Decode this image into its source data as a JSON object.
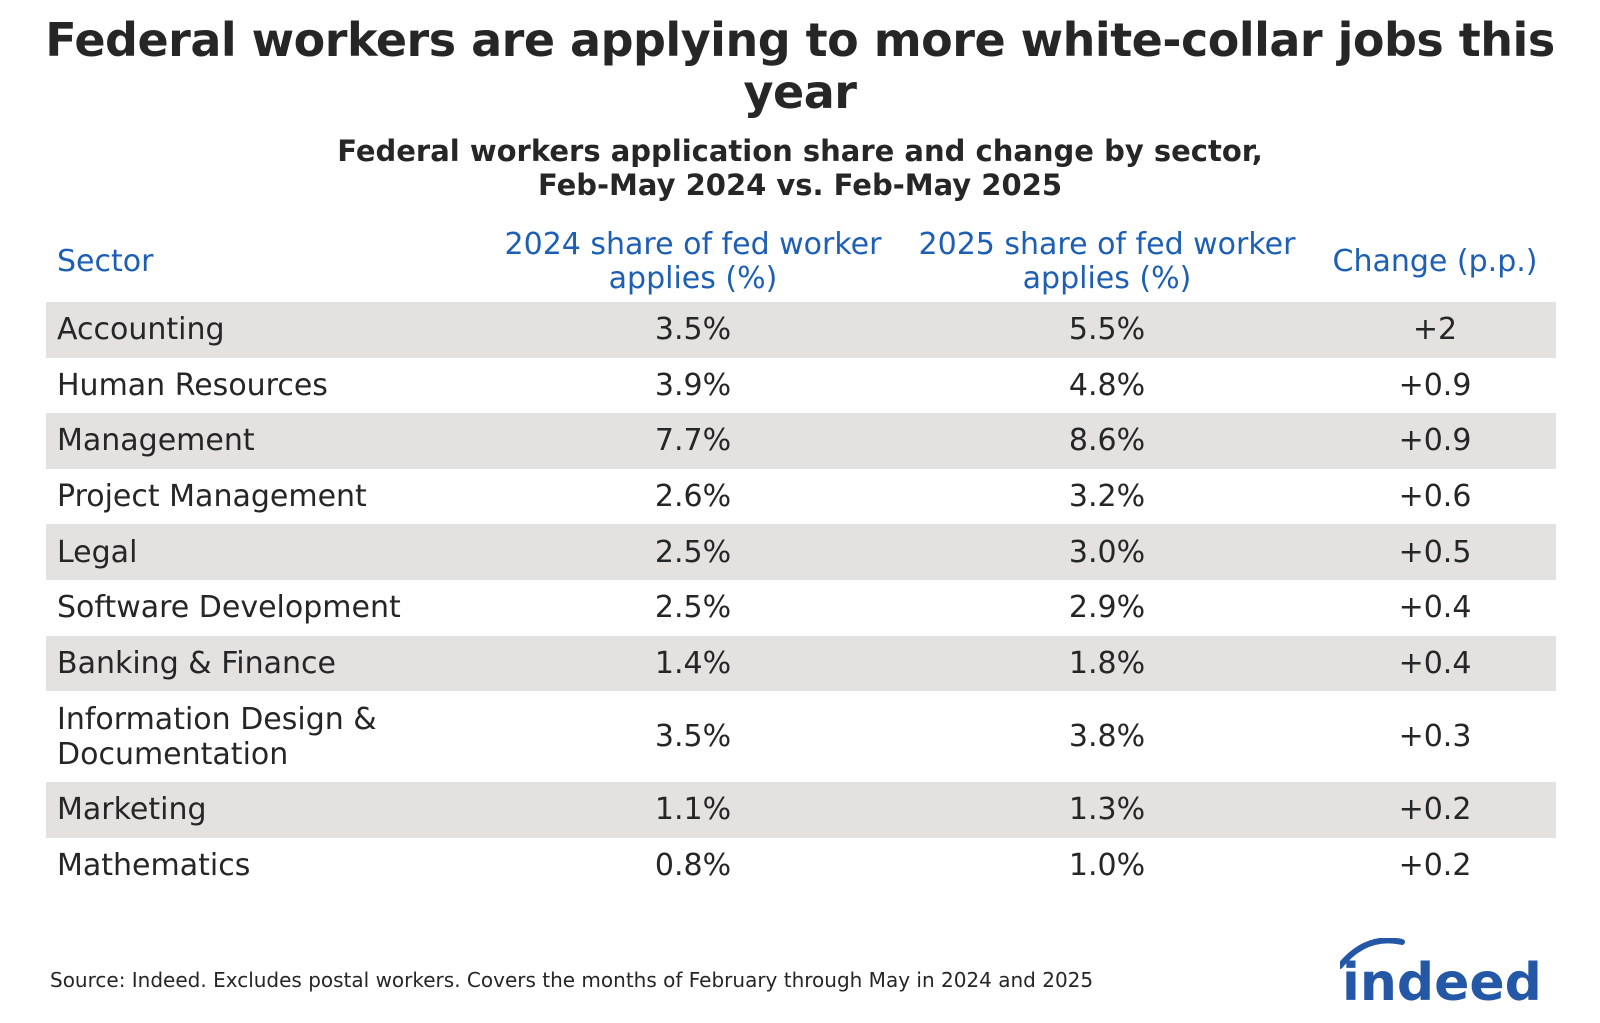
{
  "title": "Federal workers are applying to more white-collar jobs this year",
  "subtitle_line1": "Federal workers application share and change by sector,",
  "subtitle_line2": "Feb-May 2024 vs. Feb-May 2025",
  "source": "Source: Indeed. Excludes postal workers. Covers the months of February through May in 2024 and 2025",
  "logo_text": "indeed",
  "colors": {
    "header_text": "#1d5fb4",
    "shaded_row": "#e3e2e0",
    "logo_blue": "#2557a7"
  },
  "chart_data": {
    "type": "table",
    "title": "Federal workers are applying to more white-collar jobs this year",
    "subtitle": "Federal workers application share and change by sector, Feb-May 2024 vs. Feb-May 2025",
    "columns": [
      "Sector",
      "2024 share of fed worker applies (%)",
      "2025 share of fed worker applies (%)",
      "Change (p.p.)"
    ],
    "rows": [
      {
        "sector": "Accounting",
        "share_2024": "3.5%",
        "share_2025": "5.5%",
        "change": "+2"
      },
      {
        "sector": "Human Resources",
        "share_2024": "3.9%",
        "share_2025": "4.8%",
        "change": "+0.9"
      },
      {
        "sector": "Management",
        "share_2024": "7.7%",
        "share_2025": "8.6%",
        "change": "+0.9"
      },
      {
        "sector": "Project Management",
        "share_2024": "2.6%",
        "share_2025": "3.2%",
        "change": "+0.6"
      },
      {
        "sector": "Legal",
        "share_2024": "2.5%",
        "share_2025": "3.0%",
        "change": "+0.5"
      },
      {
        "sector": "Software Development",
        "share_2024": "2.5%",
        "share_2025": "2.9%",
        "change": "+0.4"
      },
      {
        "sector": "Banking & Finance",
        "share_2024": "1.4%",
        "share_2025": "1.8%",
        "change": "+0.4"
      },
      {
        "sector": "Information Design & Documentation",
        "share_2024": "3.5%",
        "share_2025": "3.8%",
        "change": "+0.3"
      },
      {
        "sector": "Marketing",
        "share_2024": "1.1%",
        "share_2025": "1.3%",
        "change": "+0.2"
      },
      {
        "sector": "Mathematics",
        "share_2024": "0.8%",
        "share_2025": "1.0%",
        "change": "+0.2"
      }
    ]
  }
}
